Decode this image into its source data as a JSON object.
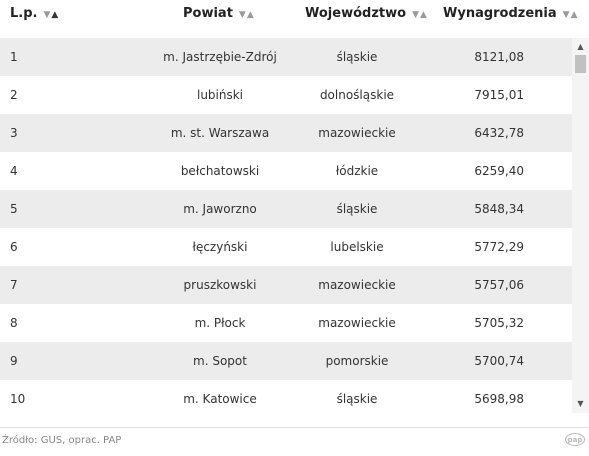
{
  "table": {
    "columns": [
      {
        "label": "L.p."
      },
      {
        "label": "Powiat"
      },
      {
        "label": "Województwo"
      },
      {
        "label": "Wynagrodzenia"
      }
    ],
    "sort_glyph_down": "▼",
    "sort_glyph_up": "▲",
    "rows": [
      {
        "lp": "1",
        "powiat": "m. Jastrzębie-Zdrój",
        "wojewodztwo": "śląskie",
        "wynagrodzenia": "8121,08"
      },
      {
        "lp": "2",
        "powiat": "lubiński",
        "wojewodztwo": "dolnośląskie",
        "wynagrodzenia": "7915,01"
      },
      {
        "lp": "3",
        "powiat": "m. st. Warszawa",
        "wojewodztwo": "mazowieckie",
        "wynagrodzenia": "6432,78"
      },
      {
        "lp": "4",
        "powiat": "bełchatowski",
        "wojewodztwo": "łódzkie",
        "wynagrodzenia": "6259,40"
      },
      {
        "lp": "5",
        "powiat": "m. Jaworzno",
        "wojewodztwo": "śląskie",
        "wynagrodzenia": "5848,34"
      },
      {
        "lp": "6",
        "powiat": "łęczyński",
        "wojewodztwo": "lubelskie",
        "wynagrodzenia": "5772,29"
      },
      {
        "lp": "7",
        "powiat": "pruszkowski",
        "wojewodztwo": "mazowieckie",
        "wynagrodzenia": "5757,06"
      },
      {
        "lp": "8",
        "powiat": "m. Płock",
        "wojewodztwo": "mazowieckie",
        "wynagrodzenia": "5705,32"
      },
      {
        "lp": "9",
        "powiat": "m. Sopot",
        "wojewodztwo": "pomorskie",
        "wynagrodzenia": "5700,74"
      },
      {
        "lp": "10",
        "powiat": "m. Katowice",
        "wojewodztwo": "śląskie",
        "wynagrodzenia": "5698,98"
      }
    ]
  },
  "footer": {
    "source": "Źródło: GUS, oprac. PAP",
    "logo_text": "pap",
    "logo_icon": "pap-logo-icon"
  },
  "scrollbar": {
    "up_glyph": "▲",
    "down_glyph": "▼"
  },
  "colors": {
    "row_stripe": "#ececec",
    "text": "#333333",
    "footer_text": "#888888"
  }
}
